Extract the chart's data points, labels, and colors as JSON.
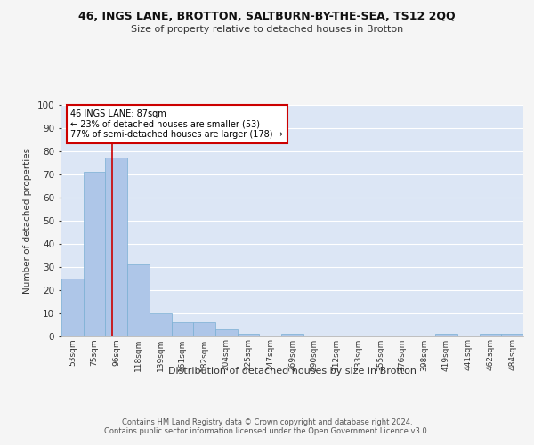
{
  "title1": "46, INGS LANE, BROTTON, SALTBURN-BY-THE-SEA, TS12 2QQ",
  "title2": "Size of property relative to detached houses in Brotton",
  "xlabel": "Distribution of detached houses by size in Brotton",
  "ylabel": "Number of detached properties",
  "categories": [
    "53sqm",
    "75sqm",
    "96sqm",
    "118sqm",
    "139sqm",
    "161sqm",
    "182sqm",
    "204sqm",
    "225sqm",
    "247sqm",
    "269sqm",
    "290sqm",
    "312sqm",
    "333sqm",
    "355sqm",
    "376sqm",
    "398sqm",
    "419sqm",
    "441sqm",
    "462sqm",
    "484sqm"
  ],
  "values": [
    25,
    71,
    77,
    31,
    10,
    6,
    6,
    3,
    1,
    0,
    1,
    0,
    0,
    0,
    0,
    0,
    0,
    1,
    0,
    1,
    1
  ],
  "bar_color": "#aec6e8",
  "bar_edge_color": "#7aafd4",
  "annotation_text_line1": "46 INGS LANE: 87sqm",
  "annotation_text_line2": "← 23% of detached houses are smaller (53)",
  "annotation_text_line3": "77% of semi-detached houses are larger (178) →",
  "annotation_box_color": "#ffffff",
  "annotation_box_edge": "#cc0000",
  "vline_color": "#cc0000",
  "vline_x": 1.82,
  "ylim": [
    0,
    100
  ],
  "yticks": [
    0,
    10,
    20,
    30,
    40,
    50,
    60,
    70,
    80,
    90,
    100
  ],
  "footer": "Contains HM Land Registry data © Crown copyright and database right 2024.\nContains public sector information licensed under the Open Government Licence v3.0.",
  "fig_bg_color": "#f5f5f5",
  "plot_bg_color": "#dce6f5",
  "grid_color": "#ffffff"
}
